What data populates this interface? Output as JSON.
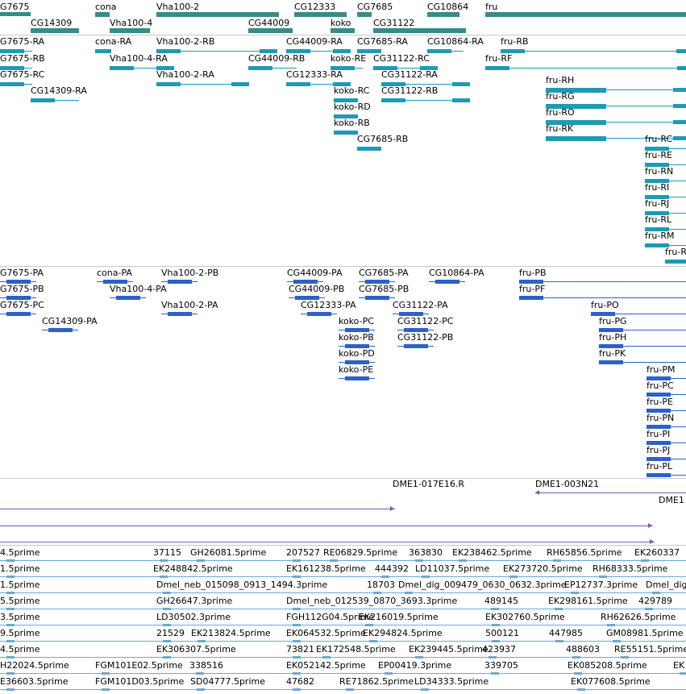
{
  "colors": {
    "gene": "#3a8a8a",
    "transcript": "#1e9ab5",
    "protein": "#2c62c8",
    "clone": "#7857a8",
    "est": "#6aa9d6"
  },
  "genes": [
    "G7675",
    "cona",
    "Vha100-2",
    "CG12333",
    "CG7685",
    "CG10864",
    "fru",
    "CG14309",
    "Vha100-4",
    "CG44009",
    "koko",
    "CG31122"
  ],
  "transcripts": [
    "G7675-RA",
    "cona-RA",
    "Vha100-2-RB",
    "CG44009-RA",
    "CG7685-RA",
    "CG10864-RA",
    "fru-RB",
    "G7675-RB",
    "Vha100-4-RA",
    "CG44009-RB",
    "koko-RE",
    "CG31122-RC",
    "fru-RF",
    "G7675-RC",
    "Vha100-2-RA",
    "CG12333-RA",
    "CG31122-RA",
    "CG14309-RA",
    "koko-RC",
    "CG31122-RB",
    "fru-RH",
    "fru-RG",
    "koko-RD",
    "fru-RO",
    "koko-RB",
    "fru-RK",
    "CG7685-RB",
    "fru-RC",
    "fru-RE",
    "fru-RN",
    "fru-RI",
    "fru-RJ",
    "fru-RL",
    "fru-RM",
    "fru-R"
  ],
  "proteins": [
    "G7675-PA",
    "cona-PA",
    "Vha100-2-PB",
    "CG44009-PA",
    "CG7685-PA",
    "CG10864-PA",
    "fru-PB",
    "G7675-PB",
    "Vha100-4-PA",
    "CG44009-PB",
    "CG7685-PB",
    "fru-PF",
    "G7675-PC",
    "Vha100-2-PA",
    "CG12333-PA",
    "CG31122-PA",
    "fru-PO",
    "CG14309-PA",
    "koko-PC",
    "CG31122-PC",
    "fru-PG",
    "koko-PB",
    "CG31122-PB",
    "fru-PH",
    "koko-PD",
    "fru-PK",
    "koko-PE",
    "fru-PM",
    "fru-PC",
    "fru-PE",
    "fru-PN",
    "fru-PI",
    "fru-PJ",
    "fru-PL"
  ],
  "clones": [
    "DME1-017E16.R",
    "DME1-003N21",
    "DME1"
  ],
  "ests": [
    "4.5prime",
    "37115",
    "GH26081.5prime",
    "207527",
    "RE06829.5prime",
    "363830",
    "EK238462.5prime",
    "RH65856.5prime",
    "EK260337",
    "1.5prime",
    "EK248842.5prime",
    "EK161238.5prime",
    "444392",
    "LD11037.5prime",
    "EK273720.5prime",
    "RH68333.5prime",
    "1.5prime",
    "Dmel_neb_015098_0913_1494.3prime",
    "18703",
    "Dmel_dig_009479_0630_0632.3prime",
    "EP12737.3prime",
    "Dmel_dig",
    "5.5prime",
    "GH26647.3prime",
    "Dmel_neb_012539_0870_3693.3prime",
    "489145",
    "EK298161.5prime",
    "429789",
    "3.5prime",
    "LD30502.3prime",
    "FGH112G04.5prime",
    "EK216019.5prime",
    "EK302760.5prime",
    "RH62626.5prime",
    "9.5prime",
    "21529",
    "EK213824.5prime",
    "EK064532.5prime",
    "EK294824.5prime",
    "500121",
    "447985",
    "GM08981.5prime",
    "4.5prime",
    "EK306307.5prime",
    "73821",
    "EK172548.5prime",
    "EK239445.5prime",
    "423937",
    "488603",
    "RE55151.5prime",
    "H22024.5prime",
    "FGM101E02.5prime",
    "338516",
    "EK052142.5prime",
    "EP00419.3prime",
    "339705",
    "EK085208.5prime",
    "EK",
    "E36603.5prime",
    "FGM101D03.5prime",
    "SD04777.5prime",
    "47682",
    "RE71862.5prime",
    "LD34333.5prime",
    "EK077608.5prime"
  ]
}
